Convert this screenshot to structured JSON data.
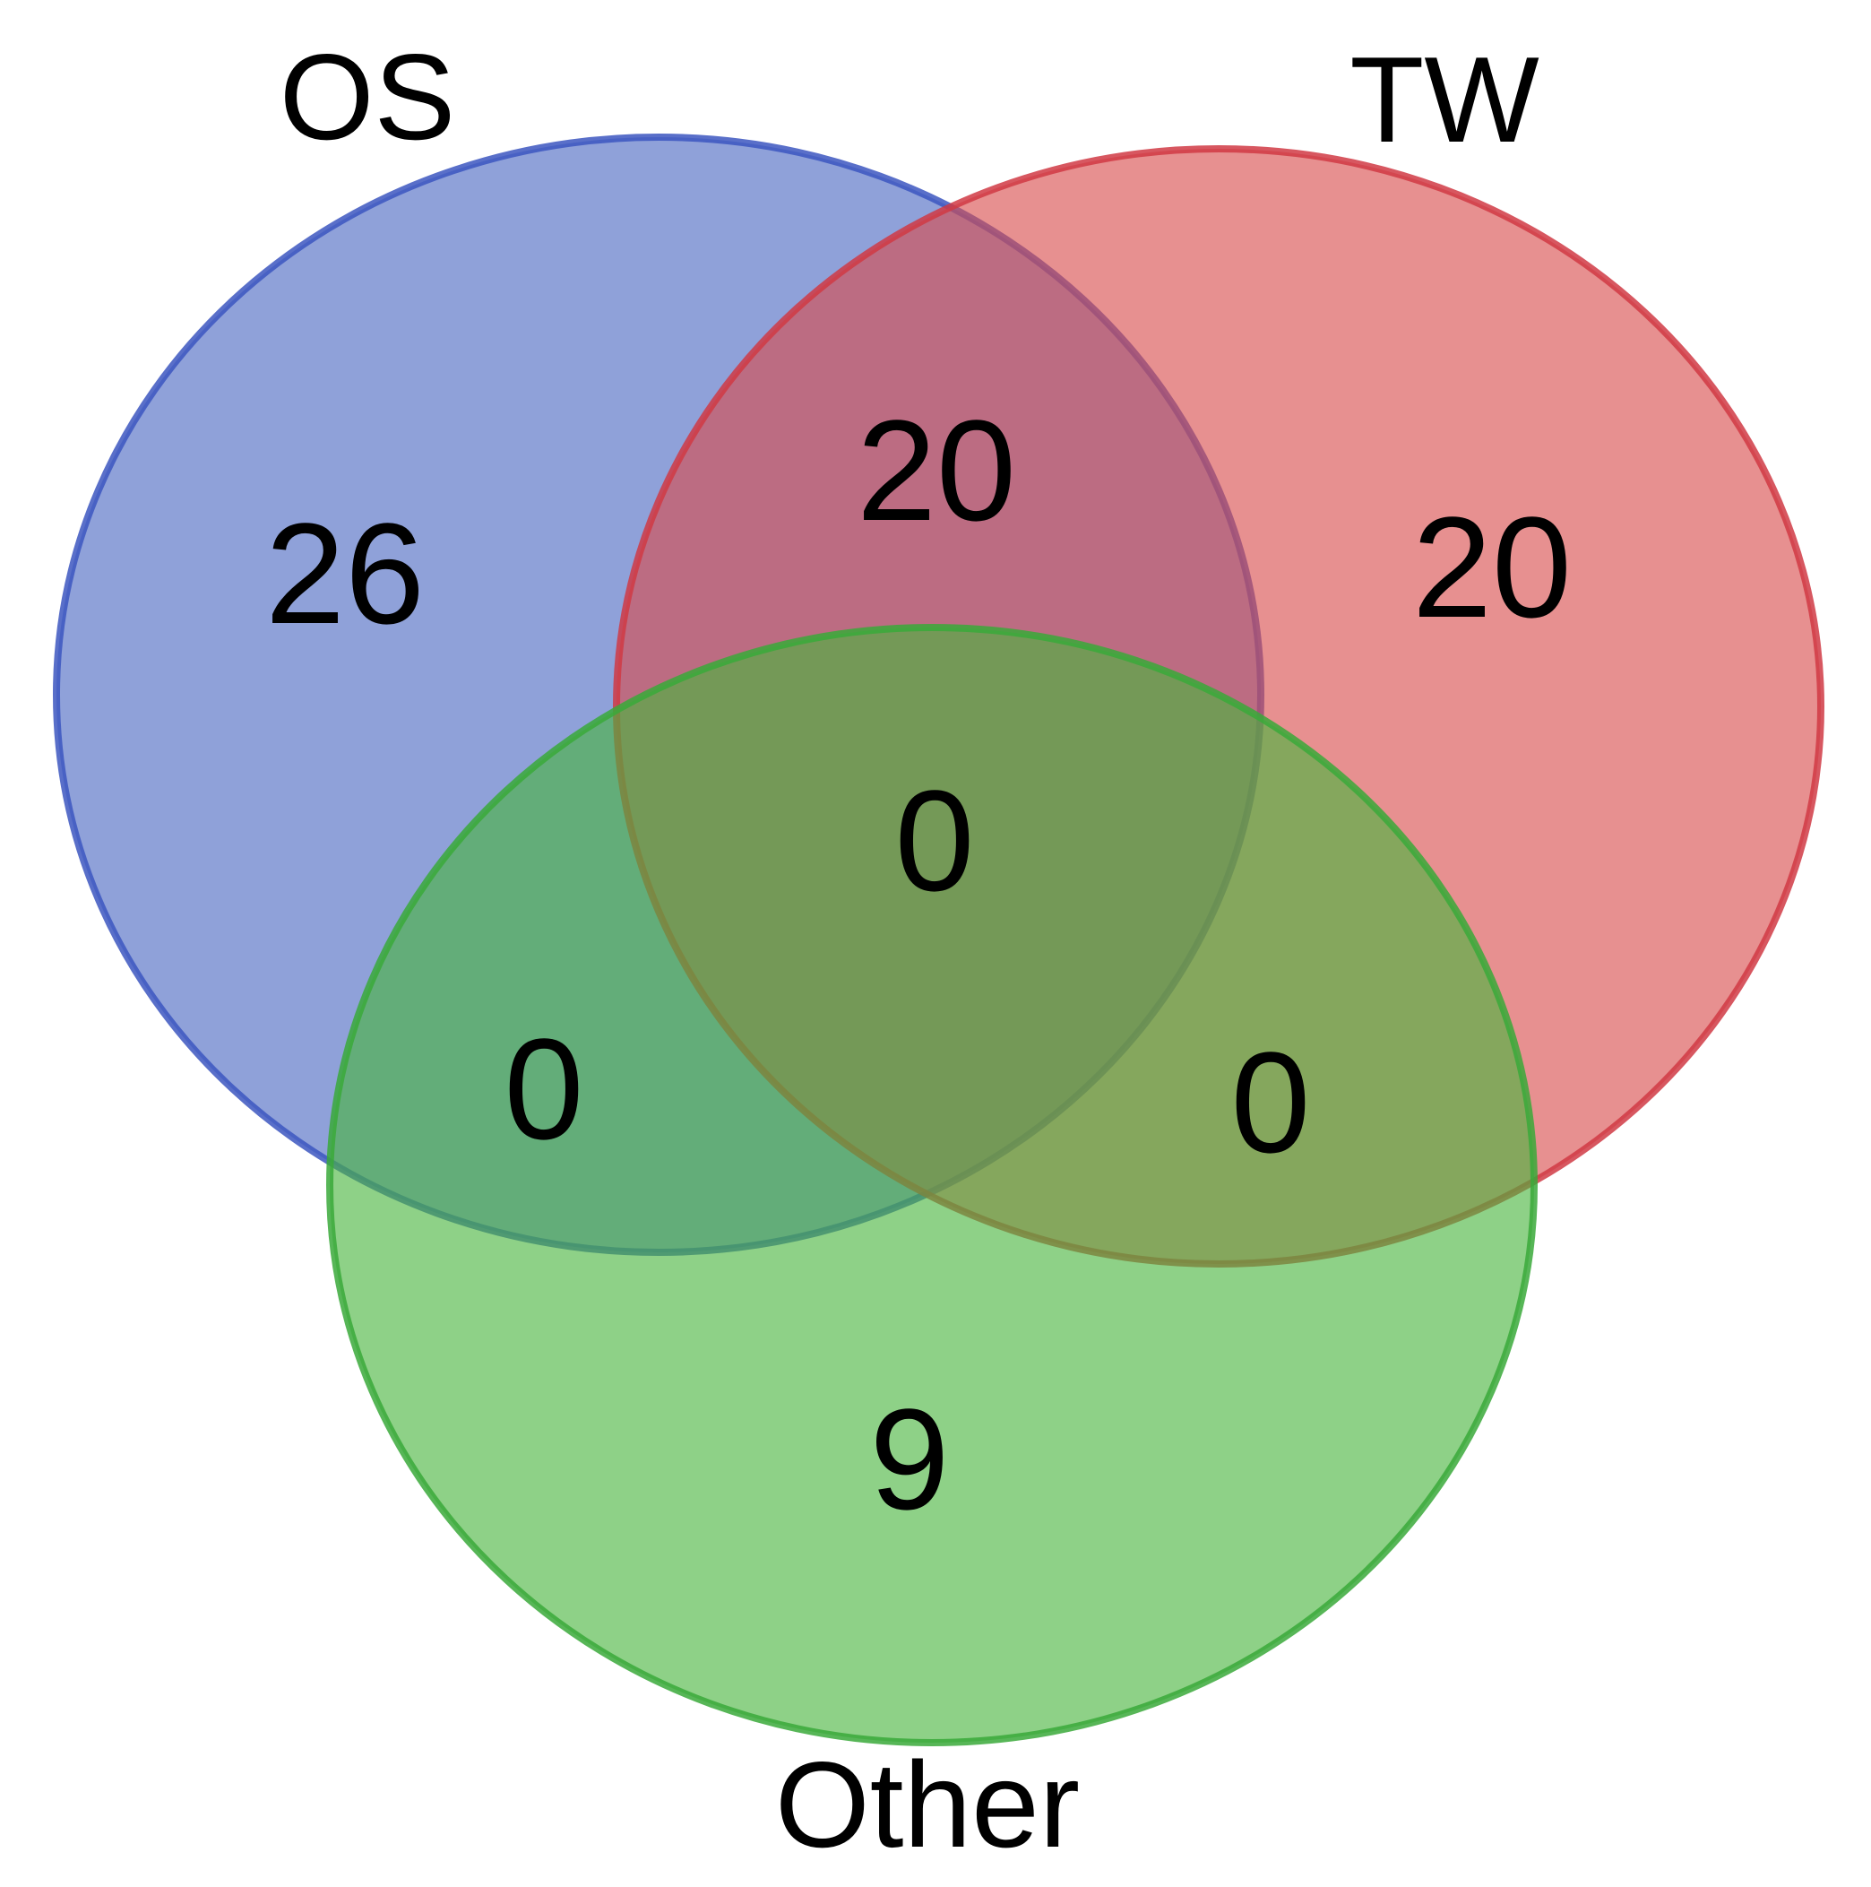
{
  "chart_data": {
    "type": "venn",
    "sets": [
      {
        "name": "OS",
        "fill": "#4a67c1",
        "stroke": "#3c56c0"
      },
      {
        "name": "TW",
        "fill": "#d94c4c",
        "stroke": "#d03a44"
      },
      {
        "name": "Other",
        "fill": "#49b43d",
        "stroke": "#3aa93a"
      }
    ],
    "regions": {
      "OS_only": "26",
      "TW_only": "20",
      "Other_only": "9",
      "OS_TW": "20",
      "OS_Other": "0",
      "TW_Other": "0",
      "OS_TW_Other": "0"
    }
  }
}
